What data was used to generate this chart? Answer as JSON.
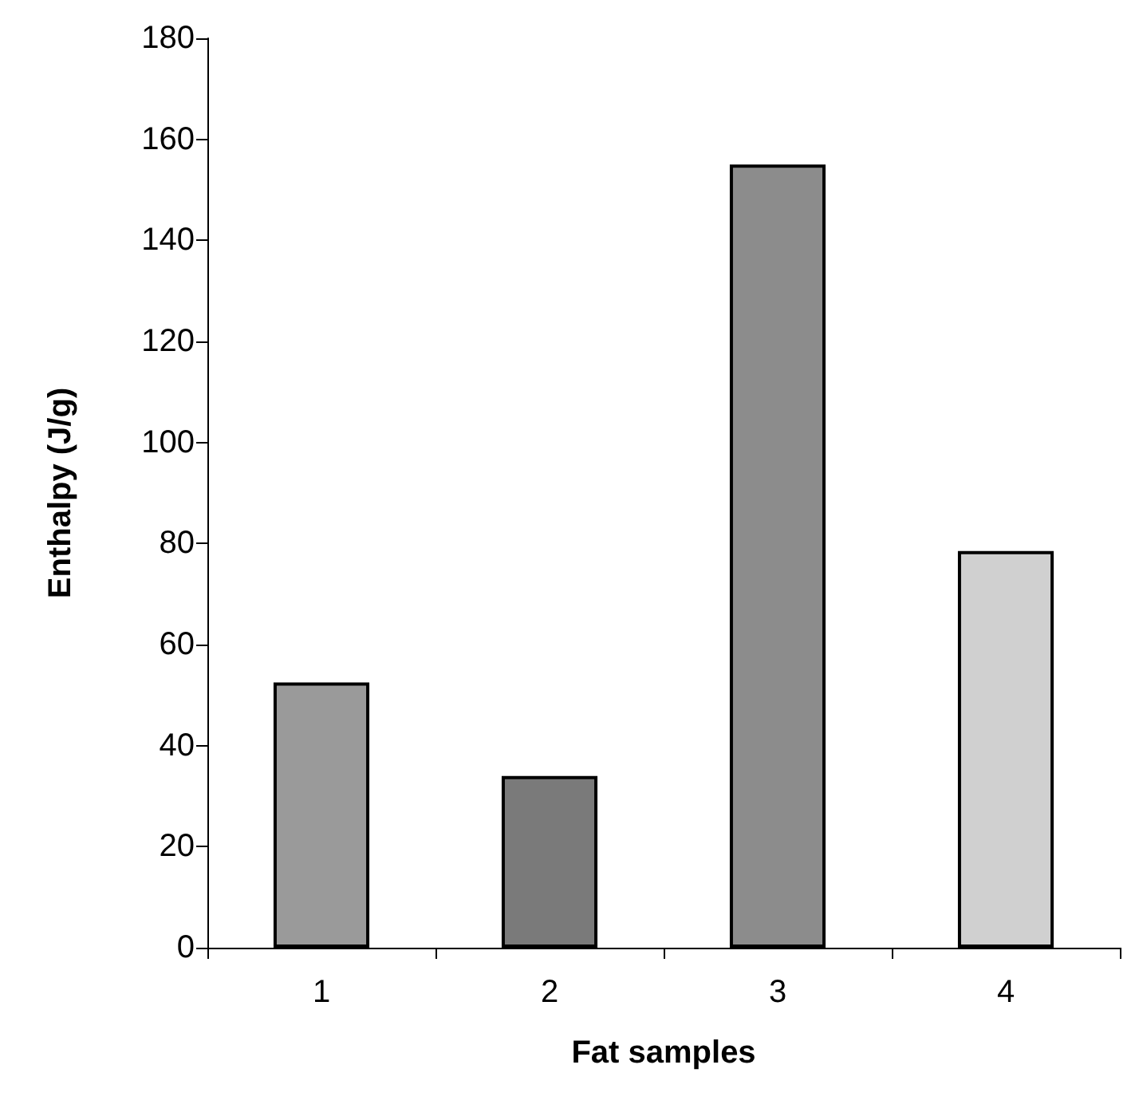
{
  "chart_data": {
    "type": "bar",
    "xlabel": "Fat samples",
    "ylabel": "Enthalpy (J/g)",
    "categories": [
      "1",
      "2",
      "3",
      "4"
    ],
    "values": [
      52.5,
      34,
      155,
      78.5
    ],
    "colors": [
      "#9a9a9a",
      "#7a7a7a",
      "#8c8c8c",
      "#d0d0d0"
    ],
    "ylim": [
      0,
      180
    ],
    "yticks": [
      0,
      20,
      40,
      60,
      80,
      100,
      120,
      140,
      160,
      180
    ],
    "grid": false
  }
}
